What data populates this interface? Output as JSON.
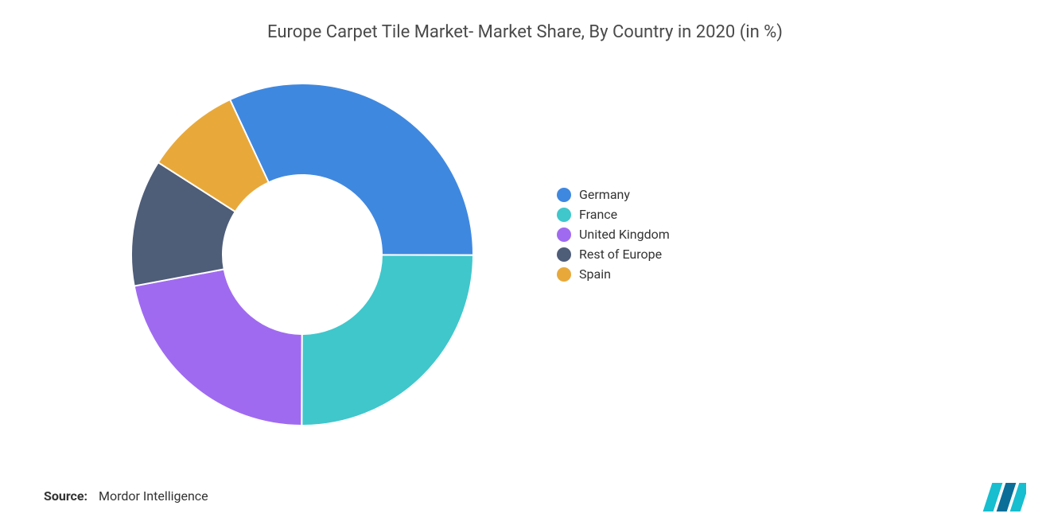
{
  "chart": {
    "type": "donut",
    "title": "Europe Carpet Tile Market- Market Share, By Country in 2020 (in %)",
    "title_fontsize": 22,
    "title_color": "#4a4a4a",
    "background_color": "#ffffff",
    "donut": {
      "outer_radius": 215,
      "inner_radius": 100,
      "center_fill": "#ffffff",
      "start_angle_deg": -25,
      "direction": "clockwise",
      "slice_stroke": "#ffffff",
      "slice_stroke_width": 2
    },
    "series": [
      {
        "label": "Germany",
        "value": 32,
        "color": "#3f88e0"
      },
      {
        "label": "France",
        "value": 25,
        "color": "#3fc7cc"
      },
      {
        "label": "United Kingdom",
        "value": 22,
        "color": "#a06af0"
      },
      {
        "label": "Rest of Europe",
        "value": 12,
        "color": "#4e5d78"
      },
      {
        "label": "Spain",
        "value": 9,
        "color": "#e8a93a"
      }
    ],
    "legend": {
      "order": [
        "Germany",
        "France",
        "United Kingdom",
        "Rest of Europe",
        "Spain"
      ],
      "fontsize": 16,
      "text_color": "#333333",
      "swatch_shape": "circle",
      "swatch_size": 18
    }
  },
  "source": {
    "label": "Source:",
    "text": "Mordor Intelligence",
    "fontsize": 16,
    "color": "#333333"
  },
  "logo": {
    "bars": [
      "#16becf",
      "#0b6e99",
      "#16becf"
    ],
    "name": "mordor-logo"
  }
}
